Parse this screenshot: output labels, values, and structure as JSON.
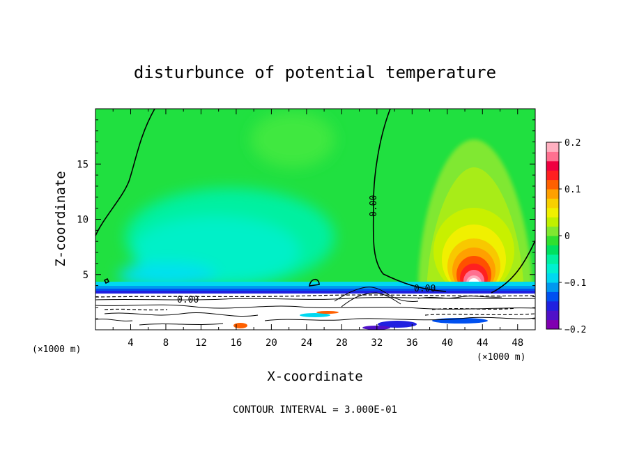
{
  "chart_data": {
    "type": "heatmap",
    "title": "disturbunce of potential temperature",
    "xlabel": "X-coordinate",
    "ylabel": "Z-coordinate",
    "x_unit": "(×1000 m)",
    "xlim": [
      0,
      50
    ],
    "ylim": [
      0,
      20
    ],
    "x_ticks": [
      4,
      8,
      12,
      16,
      20,
      24,
      28,
      32,
      36,
      40,
      44,
      48
    ],
    "x_tick_labels": [
      "4",
      "8",
      "12",
      "16",
      "20",
      "24",
      "28",
      "32",
      "36",
      "40",
      "44",
      "48"
    ],
    "y_ticks": [
      5,
      10,
      15
    ],
    "y_tick_labels": [
      "5",
      "10",
      "15"
    ],
    "colorbar": {
      "range": [
        -0.2,
        0.2
      ],
      "ticks": [
        0.2,
        0.1,
        0,
        -0.1,
        -0.2
      ],
      "tick_labels": [
        "0.2",
        "0.1",
        "0",
        "−0.1",
        "−0.2"
      ],
      "colors": [
        "#8000b0",
        "#5010c8",
        "#2020e0",
        "#0050f0",
        "#0098f0",
        "#00d8f0",
        "#00f0d0",
        "#00f0a0",
        "#00e060",
        "#30e030",
        "#80e830",
        "#c0f000",
        "#f0f000",
        "#f8d000",
        "#ffa000",
        "#ff6000",
        "#ff2020",
        "#f00040",
        "#ff7090",
        "#ffb0c0"
      ]
    },
    "contour_labels": [
      "0.00",
      "0.00",
      "0.00"
    ],
    "contour_interval_text": "CONTOUR INTERVAL = 3.000E-01",
    "features": [
      {
        "kind": "warm-max",
        "x": 43,
        "z": 4,
        "value": 0.2
      },
      {
        "kind": "cool-band",
        "x_range": [
          0,
          50
        ],
        "z_range": [
          3,
          4
        ],
        "value": -0.15
      },
      {
        "kind": "zero-contour",
        "points": [
          [
            0,
            8.5
          ],
          [
            2,
            11
          ],
          [
            4,
            16
          ],
          [
            6,
            20
          ]
        ]
      },
      {
        "kind": "zero-contour",
        "points": [
          [
            33,
            20
          ],
          [
            32,
            16
          ],
          [
            31.5,
            11
          ],
          [
            32,
            7
          ],
          [
            33,
            5
          ],
          [
            40,
            4
          ]
        ]
      },
      {
        "kind": "zero-contour",
        "points": [
          [
            47,
            3.8
          ],
          [
            48,
            5
          ],
          [
            50,
            8
          ]
        ]
      }
    ]
  }
}
